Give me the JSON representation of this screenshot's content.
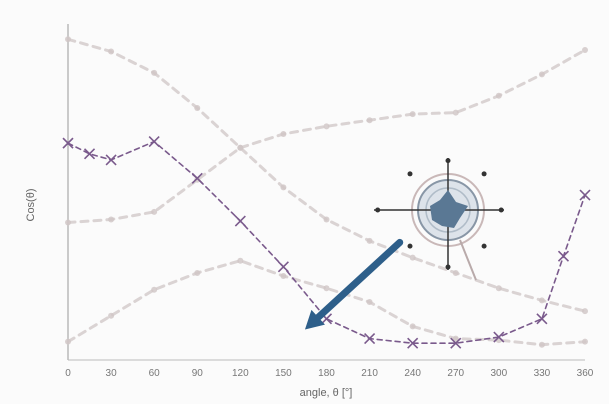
{
  "chart_data": {
    "type": "line",
    "title": "",
    "xlabel": "angle, θ [°]",
    "ylabel": "Cos(θ)",
    "xlim": [
      0,
      360
    ],
    "ylim": [
      -1.1,
      1.1
    ],
    "x_ticks": [
      0,
      30,
      60,
      90,
      120,
      150,
      180,
      210,
      240,
      270,
      300,
      330,
      360
    ],
    "grid": false,
    "legend": "none",
    "series": [
      {
        "marker": "x",
        "color": "#7a5a8c",
        "style": "dashed",
        "emphasis": "highlighted",
        "x": [
          0,
          15,
          30,
          60,
          90,
          120,
          150,
          180,
          210,
          240,
          270,
          300,
          330,
          345,
          360
        ],
        "y": [
          0.32,
          0.25,
          0.21,
          0.33,
          0.09,
          -0.19,
          -0.49,
          -0.83,
          -0.96,
          -0.99,
          -0.99,
          -0.95,
          -0.83,
          -0.42,
          -0.02
        ]
      },
      {
        "marker": "dot",
        "color": "#cfc6c6",
        "style": "dashed",
        "emphasis": "faded",
        "x": [
          0,
          30,
          60,
          90,
          120,
          150,
          180,
          210,
          240,
          270,
          300,
          330,
          360
        ],
        "y": [
          1.0,
          0.92,
          0.78,
          0.55,
          0.29,
          0.03,
          -0.18,
          -0.32,
          -0.43,
          -0.53,
          -0.63,
          -0.71,
          -0.78
        ]
      },
      {
        "marker": "dot",
        "color": "#cfc6c6",
        "style": "dashed",
        "emphasis": "faded",
        "x": [
          0,
          30,
          60,
          90,
          120,
          150,
          180,
          210,
          240,
          270,
          300,
          330,
          360
        ],
        "y": [
          -0.2,
          -0.18,
          -0.13,
          0.08,
          0.29,
          0.38,
          0.43,
          0.47,
          0.51,
          0.52,
          0.63,
          0.77,
          0.93
        ]
      },
      {
        "marker": "dot",
        "color": "#cfc6c6",
        "style": "dashed",
        "emphasis": "faded",
        "x": [
          0,
          30,
          60,
          90,
          120,
          150,
          180,
          210,
          240,
          270,
          300,
          330,
          360
        ],
        "y": [
          -0.98,
          -0.81,
          -0.64,
          -0.53,
          -0.45,
          -0.55,
          -0.63,
          -0.72,
          -0.88,
          -0.96,
          -0.97,
          -1.0,
          -0.98
        ]
      }
    ],
    "annotations": [
      {
        "type": "arrow",
        "color": "#2e5f8a",
        "from": [
          231,
          -0.33
        ],
        "to": [
          165,
          -0.9
        ]
      },
      {
        "type": "compass-widget",
        "color": "#5a7894"
      }
    ]
  }
}
